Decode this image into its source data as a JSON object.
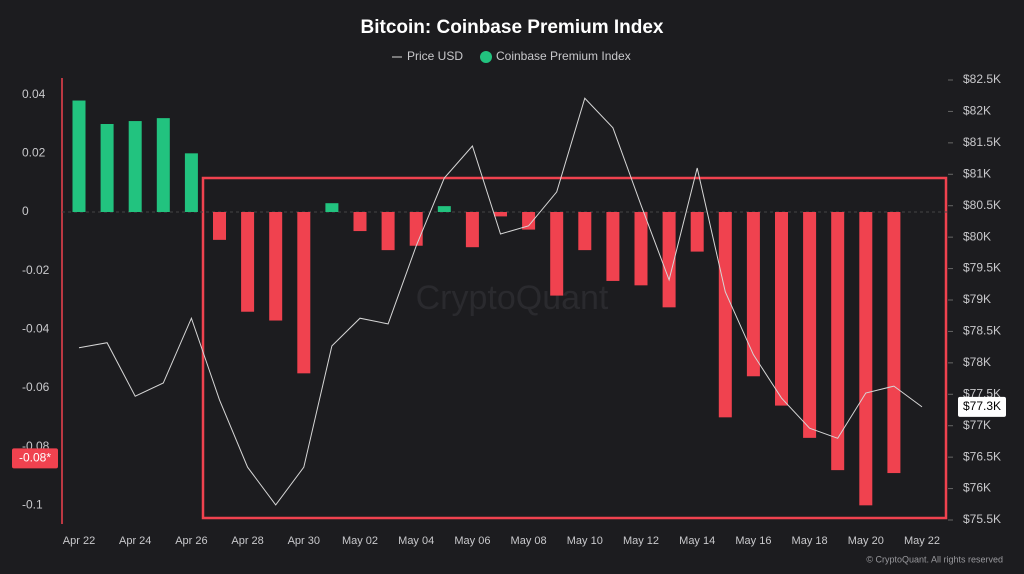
{
  "chart_data": {
    "type": "bar",
    "title": "Bitcoin: Coinbase Premium Index",
    "watermark": "CryptoQuant",
    "credit": "© CryptoQuant. All rights reserved",
    "categories": [
      "Apr 22",
      null,
      "Apr 24",
      null,
      "Apr 26",
      null,
      "Apr 28",
      null,
      "Apr 30",
      null,
      "May 02",
      null,
      "May 04",
      null,
      "May 06",
      null,
      "May 08",
      null,
      "May 10",
      null,
      "May 12",
      null,
      "May 14",
      null,
      "May 16",
      null,
      "May 18",
      null,
      "May 20",
      null,
      "May 22"
    ],
    "series": [
      {
        "name": "Price USD",
        "type": "line",
        "axis": "y2",
        "color": "#d6d6d6",
        "values": [
          78240,
          78320,
          77470,
          77680,
          78710,
          77410,
          76340,
          75740,
          76340,
          78270,
          78710,
          78620,
          79860,
          80940,
          81450,
          80050,
          80180,
          80720,
          82210,
          81740,
          80510,
          79320,
          81100,
          79130,
          78130,
          77440,
          76960,
          76800,
          77520,
          77630,
          77300
        ]
      },
      {
        "name": "Coinbase Premium Index",
        "type": "bar",
        "color": "#22c37f",
        "negative_color": "#f0424f",
        "values": [
          0.038,
          0.03,
          0.031,
          0.032,
          0.02,
          -0.0095,
          -0.034,
          -0.037,
          -0.055,
          0.003,
          -0.0065,
          -0.013,
          -0.0115,
          0.002,
          -0.012,
          -0.0015,
          -0.006,
          -0.0285,
          -0.013,
          -0.0235,
          -0.025,
          -0.0325,
          -0.0135,
          -0.07,
          -0.056,
          -0.066,
          -0.077,
          -0.088,
          -0.1,
          -0.089,
          null
        ]
      }
    ],
    "ylim": [
      -0.105,
      0.045
    ],
    "yticks": [
      0.04,
      0.02,
      0,
      -0.02,
      -0.04,
      -0.06,
      -0.08,
      -0.1
    ],
    "y2lim": [
      75500,
      82500
    ],
    "y2ticks": [
      {
        "value": 82500,
        "label": "$82.5K"
      },
      {
        "value": 82000,
        "label": "$82K"
      },
      {
        "value": 81500,
        "label": "$81.5K"
      },
      {
        "value": 81000,
        "label": "$81K"
      },
      {
        "value": 80500,
        "label": "$80.5K"
      },
      {
        "value": 80000,
        "label": "$80K"
      },
      {
        "value": 79500,
        "label": "$79.5K"
      },
      {
        "value": 79000,
        "label": "$79K"
      },
      {
        "value": 78500,
        "label": "$78.5K"
      },
      {
        "value": 78000,
        "label": "$78K"
      },
      {
        "value": 77500,
        "label": "$77.5K"
      },
      {
        "value": 77000,
        "label": "$77K"
      },
      {
        "value": 76500,
        "label": "$76.5K"
      },
      {
        "value": 76000,
        "label": "$76K"
      },
      {
        "value": 75500,
        "label": "$75.5K"
      }
    ],
    "annotations": [
      {
        "axis": "y2",
        "value": 77300,
        "label": "$77.3K"
      },
      {
        "axis": "y",
        "value": -0.084,
        "label": "-0.08*"
      }
    ],
    "grid": false
  }
}
